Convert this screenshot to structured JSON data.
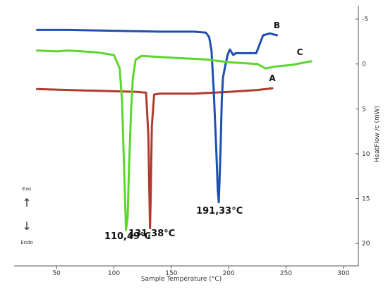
{
  "chart_data": {
    "type": "line",
    "xlabel": "Sample Temperature (°C)",
    "ylabel": "HeatFlow /c (mW)",
    "xlim": [
      13,
      313
    ],
    "ylim": [
      -6.5,
      22.5
    ],
    "y_inverted": true,
    "y_axis_side": "right",
    "x_ticks": [
      50,
      100,
      150,
      200,
      250,
      300
    ],
    "y_ticks": [
      -5,
      0,
      5,
      10,
      15,
      20
    ],
    "x_tick_labels": [
      "50",
      "100",
      "150",
      "200",
      "250",
      "300"
    ],
    "y_tick_labels": [
      "-5",
      "0",
      "5",
      "10",
      "15",
      "20"
    ],
    "grid": false,
    "series": [
      {
        "name": "A",
        "color": "#b03a2e",
        "points": [
          [
            33,
            2.8
          ],
          [
            60,
            2.9
          ],
          [
            90,
            3.0
          ],
          [
            120,
            3.1
          ],
          [
            128,
            3.2
          ],
          [
            130,
            8
          ],
          [
            131,
            15
          ],
          [
            131.38,
            18.3
          ],
          [
            132,
            15
          ],
          [
            133,
            7
          ],
          [
            135,
            3.4
          ],
          [
            140,
            3.3
          ],
          [
            170,
            3.3
          ],
          [
            200,
            3.1
          ],
          [
            225,
            2.9
          ],
          [
            238,
            2.7
          ]
        ]
      },
      {
        "name": "B",
        "color": "#1f4fae",
        "points": [
          [
            33,
            -3.8
          ],
          [
            60,
            -3.8
          ],
          [
            100,
            -3.7
          ],
          [
            140,
            -3.6
          ],
          [
            170,
            -3.6
          ],
          [
            180,
            -3.5
          ],
          [
            183,
            -3.0
          ],
          [
            185,
            -1.5
          ],
          [
            187,
            3
          ],
          [
            189,
            9
          ],
          [
            190.5,
            14
          ],
          [
            191.33,
            15.4
          ],
          [
            192,
            13
          ],
          [
            193,
            9
          ],
          [
            194,
            4
          ],
          [
            195,
            1.5
          ],
          [
            197,
            0.2
          ],
          [
            199,
            -1.0
          ],
          [
            201,
            -1.6
          ],
          [
            204,
            -1.0
          ],
          [
            206,
            -1.2
          ],
          [
            224,
            -1.2
          ],
          [
            230,
            -3.2
          ],
          [
            236,
            -3.4
          ],
          [
            242,
            -3.2
          ]
        ]
      },
      {
        "name": "C",
        "color": "#5cd62e",
        "points": [
          [
            33,
            -1.5
          ],
          [
            50,
            -1.4
          ],
          [
            60,
            -1.5
          ],
          [
            85,
            -1.3
          ],
          [
            100,
            -1.0
          ],
          [
            105,
            0.5
          ],
          [
            107,
            4
          ],
          [
            108.5,
            10
          ],
          [
            110.49,
            18.5
          ],
          [
            112,
            17
          ],
          [
            113,
            12
          ],
          [
            115,
            5
          ],
          [
            116.5,
            1.5
          ],
          [
            119,
            -0.5
          ],
          [
            124,
            -0.9
          ],
          [
            150,
            -0.7
          ],
          [
            180,
            -0.5
          ],
          [
            200,
            -0.2
          ],
          [
            225,
            0
          ],
          [
            232,
            0.5
          ],
          [
            240,
            0.3
          ],
          [
            255,
            0.1
          ],
          [
            272,
            -0.3
          ]
        ]
      }
    ],
    "series_labels": [
      {
        "text": "A",
        "x": 238,
        "y": 1.9
      },
      {
        "text": "B",
        "x": 242,
        "y": -4.0
      },
      {
        "text": "C",
        "x": 262,
        "y": -1.0
      }
    ],
    "annotations": [
      {
        "text": "110,49°C",
        "x": 112,
        "y": 19.5
      },
      {
        "text": "131,38°C",
        "x": 133,
        "y": 19.2
      },
      {
        "text": "191,33°C",
        "x": 192,
        "y": 16.7
      }
    ],
    "exo_endo": {
      "exo": "Exo",
      "endo": "Endo",
      "arrow_up": "↑",
      "arrow_down": "↓"
    }
  }
}
